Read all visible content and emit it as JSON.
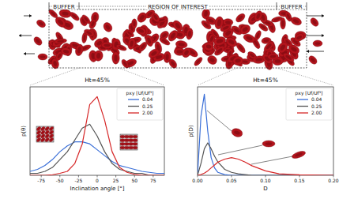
{
  "diagram": {
    "labels": [
      "BUFFER",
      "REGION OF INTEREST",
      "BUFFER"
    ]
  },
  "chart_data": [
    {
      "type": "line",
      "title": "Ht=45%",
      "x_label": "Inclination angle [°]",
      "y_label": "p(θ)",
      "legend_title": "pxy [Uf/Uf³]",
      "legend": "upper right",
      "tick_labels": "x",
      "x": [
        -90,
        -80,
        -70,
        -60,
        -50,
        -40,
        -30,
        -20,
        -10,
        0,
        10,
        20,
        30,
        40,
        50,
        60,
        70,
        80,
        90
      ],
      "xlim": [
        -90,
        90
      ],
      "xticks": [
        -75,
        -50,
        -25,
        0,
        25,
        50,
        75
      ],
      "ylim": [
        0,
        0.045
      ],
      "series": [
        {
          "name": "0.04",
          "color": "#3a6fd8",
          "values": [
            0.002,
            0.003,
            0.005,
            0.008,
            0.012,
            0.015,
            0.017,
            0.017,
            0.016,
            0.013,
            0.01,
            0.007,
            0.005,
            0.004,
            0.003,
            0.002,
            0.0015,
            0.001,
            0.001
          ]
        },
        {
          "name": "0.25",
          "color": "#555555",
          "values": [
            0.001,
            0.001,
            0.002,
            0.004,
            0.008,
            0.012,
            0.018,
            0.024,
            0.026,
            0.02,
            0.012,
            0.006,
            0.003,
            0.002,
            0.001,
            0.001,
            0,
            0,
            0
          ]
        },
        {
          "name": "2.00",
          "color": "#d62728",
          "values": [
            0,
            0,
            0,
            0.0003,
            0.001,
            0.002,
            0.006,
            0.016,
            0.036,
            0.04,
            0.028,
            0.012,
            0.004,
            0.0015,
            0.0005,
            0,
            0,
            0,
            0
          ]
        }
      ]
    },
    {
      "type": "line",
      "title": "Ht=45%",
      "x_label": "D",
      "y_label": "p(D)",
      "legend_title": "pxy [Uf/Uf³]",
      "legend": "upper right",
      "tick_labels": "x",
      "x": [
        0,
        0.005,
        0.01,
        0.015,
        0.02,
        0.025,
        0.03,
        0.04,
        0.05,
        0.06,
        0.07,
        0.08,
        0.1,
        0.12,
        0.15,
        0.2
      ],
      "xlim": [
        0,
        0.2
      ],
      "xticks": [
        {
          "value": 0,
          "label": "0.00"
        },
        {
          "value": 0.05,
          "label": "0.05"
        },
        {
          "value": 0.1,
          "label": "0.10"
        },
        {
          "value": 0.15,
          "label": "0.15"
        },
        {
          "value": 0.2,
          "label": "0.20"
        }
      ],
      "ylim": [
        0,
        60
      ],
      "series": [
        {
          "name": "0.04",
          "color": "#3a6fd8",
          "values": [
            0,
            40,
            55,
            30,
            12,
            5,
            2,
            0.5,
            0,
            0,
            0,
            0,
            0,
            0,
            0,
            0
          ]
        },
        {
          "name": "0.25",
          "color": "#555555",
          "values": [
            0,
            8,
            18,
            22,
            18,
            13,
            9,
            4,
            2,
            1,
            0.5,
            0,
            0,
            0,
            0,
            0
          ]
        },
        {
          "name": "2.00",
          "color": "#d62728",
          "values": [
            0,
            0.5,
            1.5,
            3,
            5,
            7,
            9,
            11,
            12,
            11,
            9,
            6.5,
            3,
            1,
            0.3,
            0
          ]
        }
      ]
    }
  ]
}
